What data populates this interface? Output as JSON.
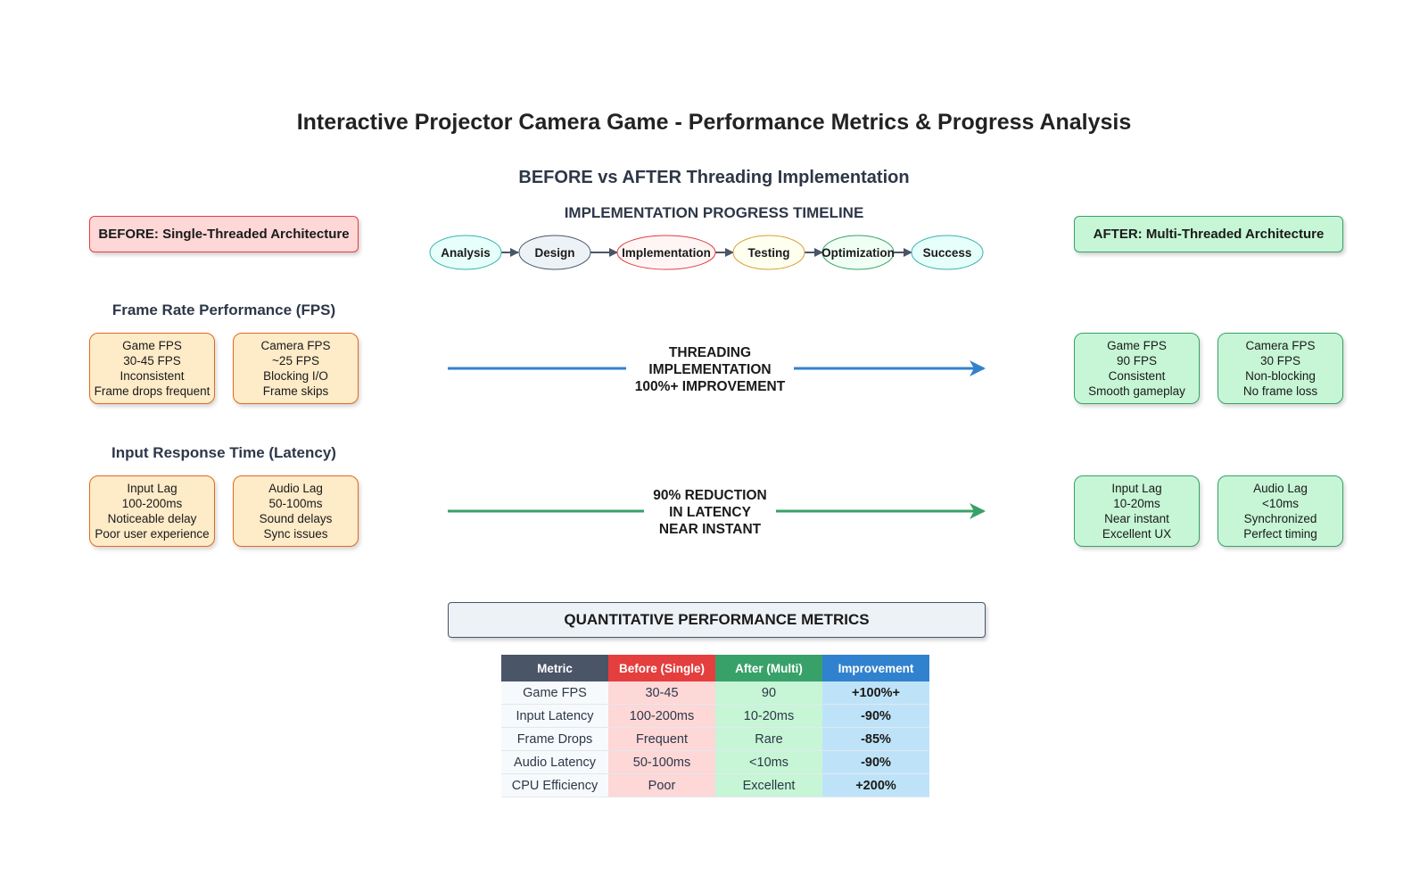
{
  "title": "Interactive Projector Camera Game - Performance Metrics & Progress Analysis",
  "subtitle": "BEFORE vs AFTER Threading Implementation",
  "timeline": {
    "title": "IMPLEMENTATION PROGRESS TIMELINE",
    "stages": [
      {
        "label": "Analysis",
        "fill": "#e6fffa",
        "stroke": "#38b2ac"
      },
      {
        "label": "Design",
        "fill": "#edf2f7",
        "stroke": "#4a5568"
      },
      {
        "label": "Implementation",
        "fill": "#fff5f5",
        "stroke": "#e53e3e"
      },
      {
        "label": "Testing",
        "fill": "#fffff0",
        "stroke": "#d69e2e"
      },
      {
        "label": "Optimization",
        "fill": "#f0fff4",
        "stroke": "#38a169"
      },
      {
        "label": "Success",
        "fill": "#e6fffa",
        "stroke": "#38b2ac"
      }
    ]
  },
  "before": {
    "header": "BEFORE: Single-Threaded Architecture",
    "fps_label": "Frame Rate Performance (FPS)",
    "latency_label": "Input Response Time (Latency)",
    "fps_cards": [
      {
        "lines": [
          "Game FPS",
          "30-45 FPS",
          "Inconsistent",
          "Frame drops frequent"
        ]
      },
      {
        "lines": [
          "Camera FPS",
          "~25 FPS",
          "Blocking I/O",
          "Frame skips"
        ]
      }
    ],
    "latency_cards": [
      {
        "lines": [
          "Input Lag",
          "100-200ms",
          "Noticeable delay",
          "Poor user experience"
        ]
      },
      {
        "lines": [
          "Audio Lag",
          "50-100ms",
          "Sound delays",
          "Sync issues"
        ]
      }
    ]
  },
  "after": {
    "header": "AFTER: Multi-Threaded Architecture",
    "fps_cards": [
      {
        "lines": [
          "Game FPS",
          "90 FPS",
          "Consistent",
          "Smooth gameplay"
        ]
      },
      {
        "lines": [
          "Camera FPS",
          "30 FPS",
          "Non-blocking",
          "No frame loss"
        ]
      }
    ],
    "latency_cards": [
      {
        "lines": [
          "Input Lag",
          "10-20ms",
          "Near instant",
          "Excellent UX"
        ]
      },
      {
        "lines": [
          "Audio Lag",
          "<10ms",
          "Synchronized",
          "Perfect timing"
        ]
      }
    ]
  },
  "arrows": {
    "fps": {
      "lines": [
        "THREADING",
        "IMPLEMENTATION",
        "100%+ IMPROVEMENT"
      ],
      "color": "#3182ce"
    },
    "latency": {
      "lines": [
        "90% REDUCTION",
        "IN LATENCY",
        "NEAR INSTANT"
      ],
      "color": "#38a169"
    }
  },
  "metrics": {
    "title": "QUANTITATIVE PERFORMANCE METRICS",
    "headers": [
      "Metric",
      "Before (Single)",
      "After (Multi)",
      "Improvement"
    ],
    "rows": [
      [
        "Game FPS",
        "30-45",
        "90",
        "+100%+"
      ],
      [
        "Input Latency",
        "100-200ms",
        "10-20ms",
        "-90%"
      ],
      [
        "Frame Drops",
        "Frequent",
        "Rare",
        "-85%"
      ],
      [
        "Audio Latency",
        "50-100ms",
        "<10ms",
        "-90%"
      ],
      [
        "CPU Efficiency",
        "Poor",
        "Excellent",
        "+200%"
      ]
    ]
  }
}
